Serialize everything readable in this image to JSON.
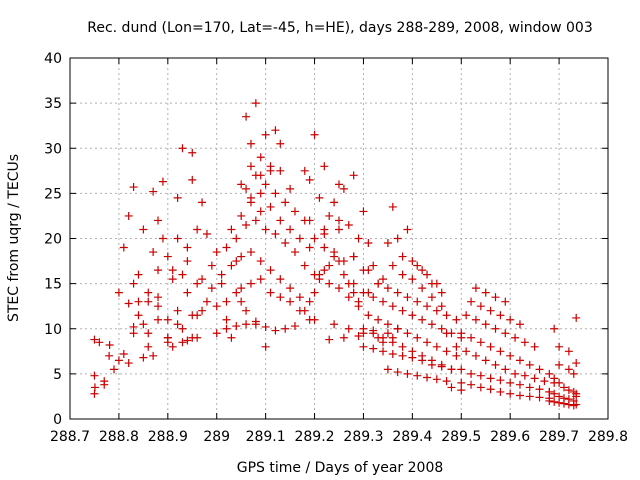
{
  "chart_data": {
    "type": "scatter",
    "title": "Rec. dund (Lon=170, Lat=-45, h=HE), days 288-289, 2008, window 003",
    "xlabel": "GPS time / Days of year 2008",
    "ylabel": "STEC from uqrg / TECUs",
    "xlim": [
      288.7,
      289.8
    ],
    "ylim": [
      0,
      40
    ],
    "xticks": [
      "288.7",
      "288.8",
      "288.9",
      "289",
      "289.1",
      "289.2",
      "289.3",
      "289.4",
      "289.5",
      "289.6",
      "289.7",
      "289.8"
    ],
    "yticks": [
      "0",
      "5",
      "10",
      "15",
      "20",
      "25",
      "30",
      "35",
      "40"
    ],
    "grid": true,
    "marker": "+",
    "color": "#cc0000",
    "series": [
      {
        "x": [
          288.75,
          288.751,
          288.75,
          288.77,
          288.76,
          288.78,
          288.781,
          288.8,
          288.79,
          288.75,
          288.77,
          288.8,
          288.81,
          288.82,
          288.83,
          288.85,
          288.87,
          288.89,
          288.82,
          288.83,
          288.84,
          288.86,
          288.88,
          288.9,
          288.91,
          288.93,
          288.95,
          288.86,
          288.88,
          288.9,
          288.92,
          288.94,
          288.96,
          288.98,
          288.84,
          288.87,
          288.89,
          288.92,
          288.95,
          288.97,
          288.83,
          288.85,
          288.88,
          288.91,
          288.93,
          288.96,
          288.99,
          288.87,
          288.9,
          288.92,
          288.95,
          288.97,
          288.81,
          288.86,
          288.9,
          288.93,
          288.96,
          288.98,
          288.82,
          288.85,
          288.92,
          288.94,
          288.97,
          288.99,
          288.93,
          288.95,
          288.9,
          288.88,
          288.86,
          288.84,
          288.83,
          288.94,
          288.91,
          288.88,
          288.94,
          288.96,
          289.0,
          289.02,
          289.04,
          289.06,
          289.08,
          289.1,
          289.12,
          289.14,
          289.16,
          289.0,
          289.02,
          289.05,
          289.07,
          289.09,
          289.11,
          289.13,
          289.15,
          289.17,
          289.19,
          289.01,
          289.03,
          289.05,
          289.07,
          289.09,
          289.11,
          289.13,
          289.15,
          289.17,
          289.0,
          289.02,
          289.04,
          289.06,
          289.08,
          289.1,
          289.12,
          289.14,
          289.16,
          289.18,
          289.2,
          289.03,
          289.05,
          289.07,
          289.09,
          289.11,
          289.13,
          289.15,
          289.17,
          289.19,
          289.01,
          289.04,
          289.06,
          289.08,
          289.1,
          289.12,
          289.14,
          289.16,
          289.18,
          289.02,
          289.05,
          289.07,
          289.09,
          289.11,
          289.13,
          289.15,
          289.06,
          289.08,
          289.1,
          289.12,
          289.07,
          289.09,
          289.11,
          289.05,
          289.07,
          289.09,
          289.13,
          289.04,
          289.06,
          289.08,
          289.1,
          289.03,
          289.18,
          289.19,
          289.2,
          289.21,
          289.22,
          289.23,
          289.24,
          289.25,
          289.26,
          289.27,
          289.28,
          289.29,
          289.18,
          289.2,
          289.22,
          289.24,
          289.26,
          289.28,
          289.3,
          289.19,
          289.21,
          289.23,
          289.25,
          289.27,
          289.29,
          289.31,
          289.2,
          289.22,
          289.24,
          289.26,
          289.28,
          289.3,
          289.32,
          289.21,
          289.23,
          289.25,
          289.27,
          289.29,
          289.31,
          289.33,
          289.19,
          289.22,
          289.25,
          289.28,
          289.31,
          289.34,
          289.36,
          289.2,
          289.24,
          289.27,
          289.3,
          289.33,
          289.35,
          289.37,
          289.23,
          289.26,
          289.29,
          289.32,
          289.34,
          289.36,
          289.22,
          289.25,
          289.28,
          289.3,
          289.3,
          289.32,
          289.34,
          289.36,
          289.38,
          289.4,
          289.42,
          289.44,
          289.46,
          289.48,
          289.3,
          289.32,
          289.34,
          289.36,
          289.38,
          289.4,
          289.42,
          289.44,
          289.46,
          289.48,
          289.31,
          289.33,
          289.35,
          289.37,
          289.39,
          289.41,
          289.43,
          289.45,
          289.47,
          289.49,
          289.32,
          289.34,
          289.36,
          289.38,
          289.4,
          289.42,
          289.44,
          289.46,
          289.48,
          289.5,
          289.33,
          289.35,
          289.37,
          289.39,
          289.41,
          289.43,
          289.45,
          289.47,
          289.49,
          289.35,
          289.37,
          289.39,
          289.41,
          289.43,
          289.45,
          289.47,
          289.36,
          289.38,
          289.4,
          289.42,
          289.44,
          289.46,
          289.38,
          289.4,
          289.42,
          289.44,
          289.46,
          289.41,
          289.43,
          289.45,
          289.35,
          289.37,
          289.39,
          289.5,
          289.52,
          289.54,
          289.56,
          289.58,
          289.6,
          289.62,
          289.64,
          289.66,
          289.68,
          289.5,
          289.52,
          289.54,
          289.56,
          289.58,
          289.6,
          289.62,
          289.64,
          289.66,
          289.68,
          289.51,
          289.53,
          289.55,
          289.57,
          289.59,
          289.61,
          289.63,
          289.65,
          289.67,
          289.69,
          289.5,
          289.52,
          289.54,
          289.56,
          289.58,
          289.6,
          289.62,
          289.64,
          289.66,
          289.68,
          289.51,
          289.53,
          289.55,
          289.57,
          289.59,
          289.61,
          289.63,
          289.65,
          289.52,
          289.54,
          289.56,
          289.58,
          289.6,
          289.62,
          289.53,
          289.55,
          289.57,
          289.59,
          289.48,
          289.5,
          289.49,
          289.47,
          289.68,
          289.69,
          289.7,
          289.71,
          289.72,
          289.73,
          289.735,
          289.68,
          289.69,
          289.7,
          289.71,
          289.72,
          289.73,
          289.735,
          289.69,
          289.7,
          289.71,
          289.72,
          289.73,
          289.735,
          289.7,
          289.72,
          289.73,
          289.735,
          289.7,
          289.735,
          289.72,
          289.69
        ],
        "y": [
          2.8,
          3.5,
          4.8,
          3.8,
          8.5,
          7.0,
          8.2,
          6.5,
          5.5,
          8.8,
          4.2,
          14.0,
          19.0,
          22.5,
          25.7,
          21.0,
          25.2,
          26.3,
          12.8,
          10.2,
          11.5,
          13.0,
          11.0,
          9.0,
          8.0,
          8.5,
          9.0,
          14.0,
          16.5,
          18.0,
          20.0,
          19.0,
          21.0,
          20.5,
          16.0,
          18.5,
          20.0,
          24.5,
          26.5,
          24.0,
          9.5,
          10.5,
          13.5,
          15.5,
          16.0,
          15.0,
          14.5,
          7.0,
          9.0,
          10.5,
          11.5,
          12.0,
          7.2,
          8.0,
          8.5,
          10.0,
          11.5,
          13.0,
          6.2,
          6.8,
          12.0,
          14.0,
          15.5,
          17.0,
          30.0,
          29.5,
          11.0,
          12.5,
          9.5,
          13.0,
          15.0,
          8.7,
          16.5,
          22.0,
          17.5,
          9.0,
          9.5,
          10.0,
          10.3,
          10.5,
          10.8,
          10.2,
          9.8,
          10.0,
          10.3,
          12.5,
          13.0,
          14.5,
          15.0,
          15.5,
          14.0,
          13.5,
          13.0,
          12.0,
          11.0,
          16.0,
          17.0,
          18.0,
          18.5,
          17.5,
          16.5,
          15.5,
          14.5,
          13.5,
          18.5,
          19.0,
          20.0,
          21.5,
          22.0,
          21.0,
          20.5,
          19.5,
          18.5,
          17.0,
          16.0,
          21.0,
          22.5,
          24.0,
          25.0,
          23.5,
          22.0,
          21.0,
          20.0,
          19.0,
          15.0,
          17.5,
          25.5,
          27.0,
          26.0,
          25.0,
          24.0,
          23.0,
          22.0,
          11.0,
          13.0,
          28.0,
          29.0,
          27.5,
          30.5,
          25.5,
          33.5,
          35.0,
          31.5,
          32.0,
          30.5,
          27.0,
          28.0,
          26.0,
          24.5,
          23.0,
          27.5,
          14.0,
          12.0,
          10.5,
          8.0,
          9.0,
          12.0,
          13.0,
          14.0,
          15.5,
          16.5,
          17.0,
          18.0,
          17.5,
          16.0,
          15.0,
          14.0,
          13.0,
          27.5,
          31.5,
          28.0,
          24.0,
          25.5,
          27.0,
          23.0,
          26.5,
          24.5,
          22.5,
          26.0,
          21.5,
          20.0,
          19.5,
          20.0,
          19.0,
          18.5,
          17.5,
          18.0,
          16.5,
          17.0,
          16.0,
          15.0,
          14.5,
          13.5,
          12.5,
          14.0,
          15.0,
          22.0,
          20.5,
          21.0,
          18.0,
          16.5,
          15.5,
          23.5,
          11.0,
          10.5,
          10.0,
          9.5,
          9.0,
          9.5,
          10.0,
          8.8,
          9.0,
          9.2,
          9.8,
          8.5,
          9.0,
          21.0,
          22.0,
          15.0,
          14.0,
          8.0,
          7.8,
          7.5,
          7.2,
          7.0,
          6.8,
          6.5,
          6.0,
          5.8,
          5.5,
          10.0,
          9.5,
          9.0,
          8.5,
          8.0,
          7.5,
          7.0,
          6.5,
          6.0,
          5.5,
          11.5,
          11.0,
          10.5,
          10.0,
          9.5,
          9.0,
          8.5,
          8.0,
          7.5,
          7.0,
          13.5,
          13.0,
          12.5,
          12.0,
          11.5,
          11.0,
          10.5,
          10.0,
          9.5,
          9.0,
          15.0,
          14.5,
          14.0,
          13.5,
          13.0,
          12.5,
          12.0,
          11.5,
          11.0,
          5.5,
          5.2,
          5.0,
          4.8,
          4.6,
          4.4,
          4.2,
          17.0,
          16.0,
          15.5,
          14.5,
          13.5,
          12.5,
          18.0,
          17.5,
          16.5,
          15.0,
          14.0,
          17.0,
          16.0,
          15.0,
          19.5,
          20.0,
          21.0,
          4.0,
          3.8,
          3.5,
          3.3,
          3.0,
          2.8,
          2.6,
          2.5,
          2.4,
          2.3,
          5.5,
          5.0,
          4.8,
          4.5,
          4.3,
          4.0,
          3.8,
          3.5,
          3.3,
          3.0,
          7.5,
          7.0,
          6.5,
          6.0,
          5.5,
          5.0,
          4.8,
          4.5,
          4.2,
          4.0,
          9.5,
          9.0,
          8.5,
          8.0,
          7.5,
          7.0,
          6.5,
          6.0,
          5.5,
          5.0,
          11.5,
          11.0,
          10.5,
          10.0,
          9.5,
          9.0,
          8.5,
          8.0,
          13.0,
          12.5,
          12.0,
          11.5,
          11.0,
          10.5,
          14.5,
          14.0,
          13.5,
          13.0,
          3.5,
          3.2,
          8.0,
          9.5,
          2.0,
          1.9,
          1.8,
          1.7,
          1.6,
          1.5,
          1.6,
          3.0,
          2.8,
          2.5,
          2.3,
          2.2,
          2.0,
          2.5,
          4.5,
          4.0,
          3.5,
          3.2,
          3.0,
          2.8,
          6.0,
          5.5,
          5.0,
          6.2,
          8.0,
          11.2,
          7.5,
          10.0
        ]
      }
    ]
  }
}
